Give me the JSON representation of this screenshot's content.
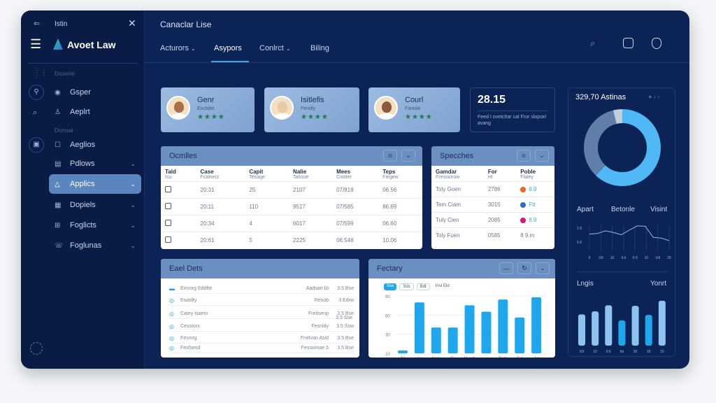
{
  "sidebar": {
    "top_label": "Istin",
    "brand": "Avoet Law",
    "section1": "Dsosnie",
    "section2": "Dcmsal",
    "items": [
      {
        "label": "Gsper",
        "icon": "coin-icon"
      },
      {
        "label": "Aeplrt",
        "icon": "user-icon"
      },
      {
        "label": "Aeglios",
        "icon": "chat-icon"
      },
      {
        "label": "Pdlows",
        "icon": "document-icon",
        "chevron": true
      },
      {
        "label": "Applics",
        "icon": "bell-icon",
        "chevron": true,
        "active": true
      },
      {
        "label": "Dopiels",
        "icon": "building-icon",
        "chevron": true
      },
      {
        "label": "Foglicts",
        "icon": "grid-icon",
        "chevron": true
      },
      {
        "label": "Foglunas",
        "icon": "phone-icon",
        "chevron": true
      }
    ]
  },
  "header": {
    "title": "Canaclar Lise",
    "tabs": [
      {
        "label": "Acturors",
        "chevron": true
      },
      {
        "label": "Asypors",
        "active": true
      },
      {
        "label": "Conlrct",
        "chevron": true
      },
      {
        "label": "Biling"
      }
    ]
  },
  "profiles": [
    {
      "name": "Genr",
      "sub": "Excbibit",
      "stars": "★★★★"
    },
    {
      "name": "Isitlefis",
      "sub": "Fendly",
      "stars": "★★★★"
    },
    {
      "name": "Courl",
      "sub": "Fanisle",
      "stars": "★★★★"
    }
  ],
  "stat": {
    "value": "28.15",
    "desc": "Feed I ovetchar cal Fror slopsel avang"
  },
  "cases": {
    "title": "Ocmlles",
    "columns": [
      [
        "Tald",
        "Isu"
      ],
      [
        "Case",
        "Fcalnect"
      ],
      [
        "Capit",
        "Tesage"
      ],
      [
        "Nalie",
        "Tahsse"
      ],
      [
        "Mees",
        "Cistiter"
      ],
      [
        "Teps",
        "Fiegew"
      ]
    ],
    "rows": [
      [
        "20:31",
        "25",
        "2107",
        "07/818",
        "06.56"
      ],
      [
        "20:11",
        "110",
        "9517",
        "07/585",
        "86.69"
      ],
      [
        "20:34",
        "4",
        "6017",
        "07/599",
        "06.60"
      ],
      [
        "20:61",
        "5",
        "2225",
        "06.548",
        "10.06"
      ]
    ]
  },
  "speeches": {
    "title": "Specches",
    "columns": [
      [
        "Gamdar",
        "Fressiorow"
      ],
      [
        "For",
        "HI"
      ],
      [
        "Poble",
        "Flaley"
      ]
    ],
    "rows": [
      {
        "name": "Toly Goen",
        "num": "2786",
        "dot": "#f26522",
        "val": "8.9"
      },
      {
        "name": "Tem Ciam",
        "num": "3015",
        "dot": "#2a6fc9",
        "val": "Ftt"
      },
      {
        "name": "Tuly Cien",
        "num": "2085",
        "dot": "#d6187a",
        "val": "8.9"
      },
      {
        "name": "Toly Fuen",
        "num": "0585",
        "dot": "",
        "val": "8 9.m"
      }
    ]
  },
  "events": {
    "title": "Eael Dets",
    "rows": [
      {
        "label": "Emrorg Eddfte",
        "right": "Aadsarr1b",
        "val": "3.5 Bse"
      },
      {
        "label": "Esatdty",
        "right": "Resob",
        "val": "3 Edrw"
      },
      {
        "label": "Catey tsaem",
        "right": "Freitsenp",
        "val": "3.5 Bse"
      },
      {
        "label": "Cesstors",
        "right": "Fesnldy",
        "val": "3.5 Ssw"
      },
      {
        "label": "Fesnng",
        "right": "Fnelvan Asid",
        "val": "3.5 Bse"
      },
      {
        "label": "Fesfsesd",
        "right": "Fessivinae.5",
        "val": "3.5 Bse"
      }
    ],
    "extra_val": "3.5 Sse"
  },
  "factory": {
    "title": "Fectary",
    "chips": [
      "Sse",
      "Sds",
      "Bdt",
      "Inst Eld"
    ],
    "chart_data": {
      "type": "bar",
      "yticks": [
        "10",
        "30",
        "60",
        "90"
      ],
      "ylim": [
        10,
        90
      ],
      "categories": [
        "Bil",
        "Au",
        "Nale",
        "Fr",
        "Mundi",
        "",
        "Tods",
        "Ful",
        "Jsl"
      ],
      "values": [
        14,
        81,
        46,
        46,
        77,
        68,
        85,
        60,
        88
      ],
      "color": "#1ea7ec"
    }
  },
  "right": {
    "title": "329,70 Astinas",
    "donut": {
      "type": "pie",
      "values": [
        62,
        34,
        4
      ],
      "colors": [
        "#4fb8f5",
        "#5f7fa8",
        "#c3cedd"
      ]
    },
    "legend": [
      "Apart",
      "Betonle",
      "Visint"
    ],
    "line": {
      "type": "line",
      "yticks": [
        "1 8",
        "5 8"
      ],
      "xticks": [
        "0",
        "10t",
        "10",
        "3.6",
        "0 0",
        "10",
        "10t",
        "20"
      ],
      "values": [
        50,
        52,
        60,
        55,
        48,
        62,
        75,
        74,
        40,
        38,
        30
      ]
    },
    "bars_label_left": "Lngis",
    "bars_label_right": "Yonrt",
    "bars": {
      "type": "bar",
      "values": [
        62,
        68,
        80,
        50,
        79,
        61,
        89
      ],
      "colors": [
        "#8cc3f0",
        "#8cc3f0",
        "#8cc3f0",
        "#1ea7ec",
        "#8cc3f0",
        "#1ea7ec",
        "#8cc3f0"
      ],
      "categories": [
        "10t",
        "10",
        "0.6",
        "5d",
        "20",
        "30",
        "10"
      ]
    }
  }
}
